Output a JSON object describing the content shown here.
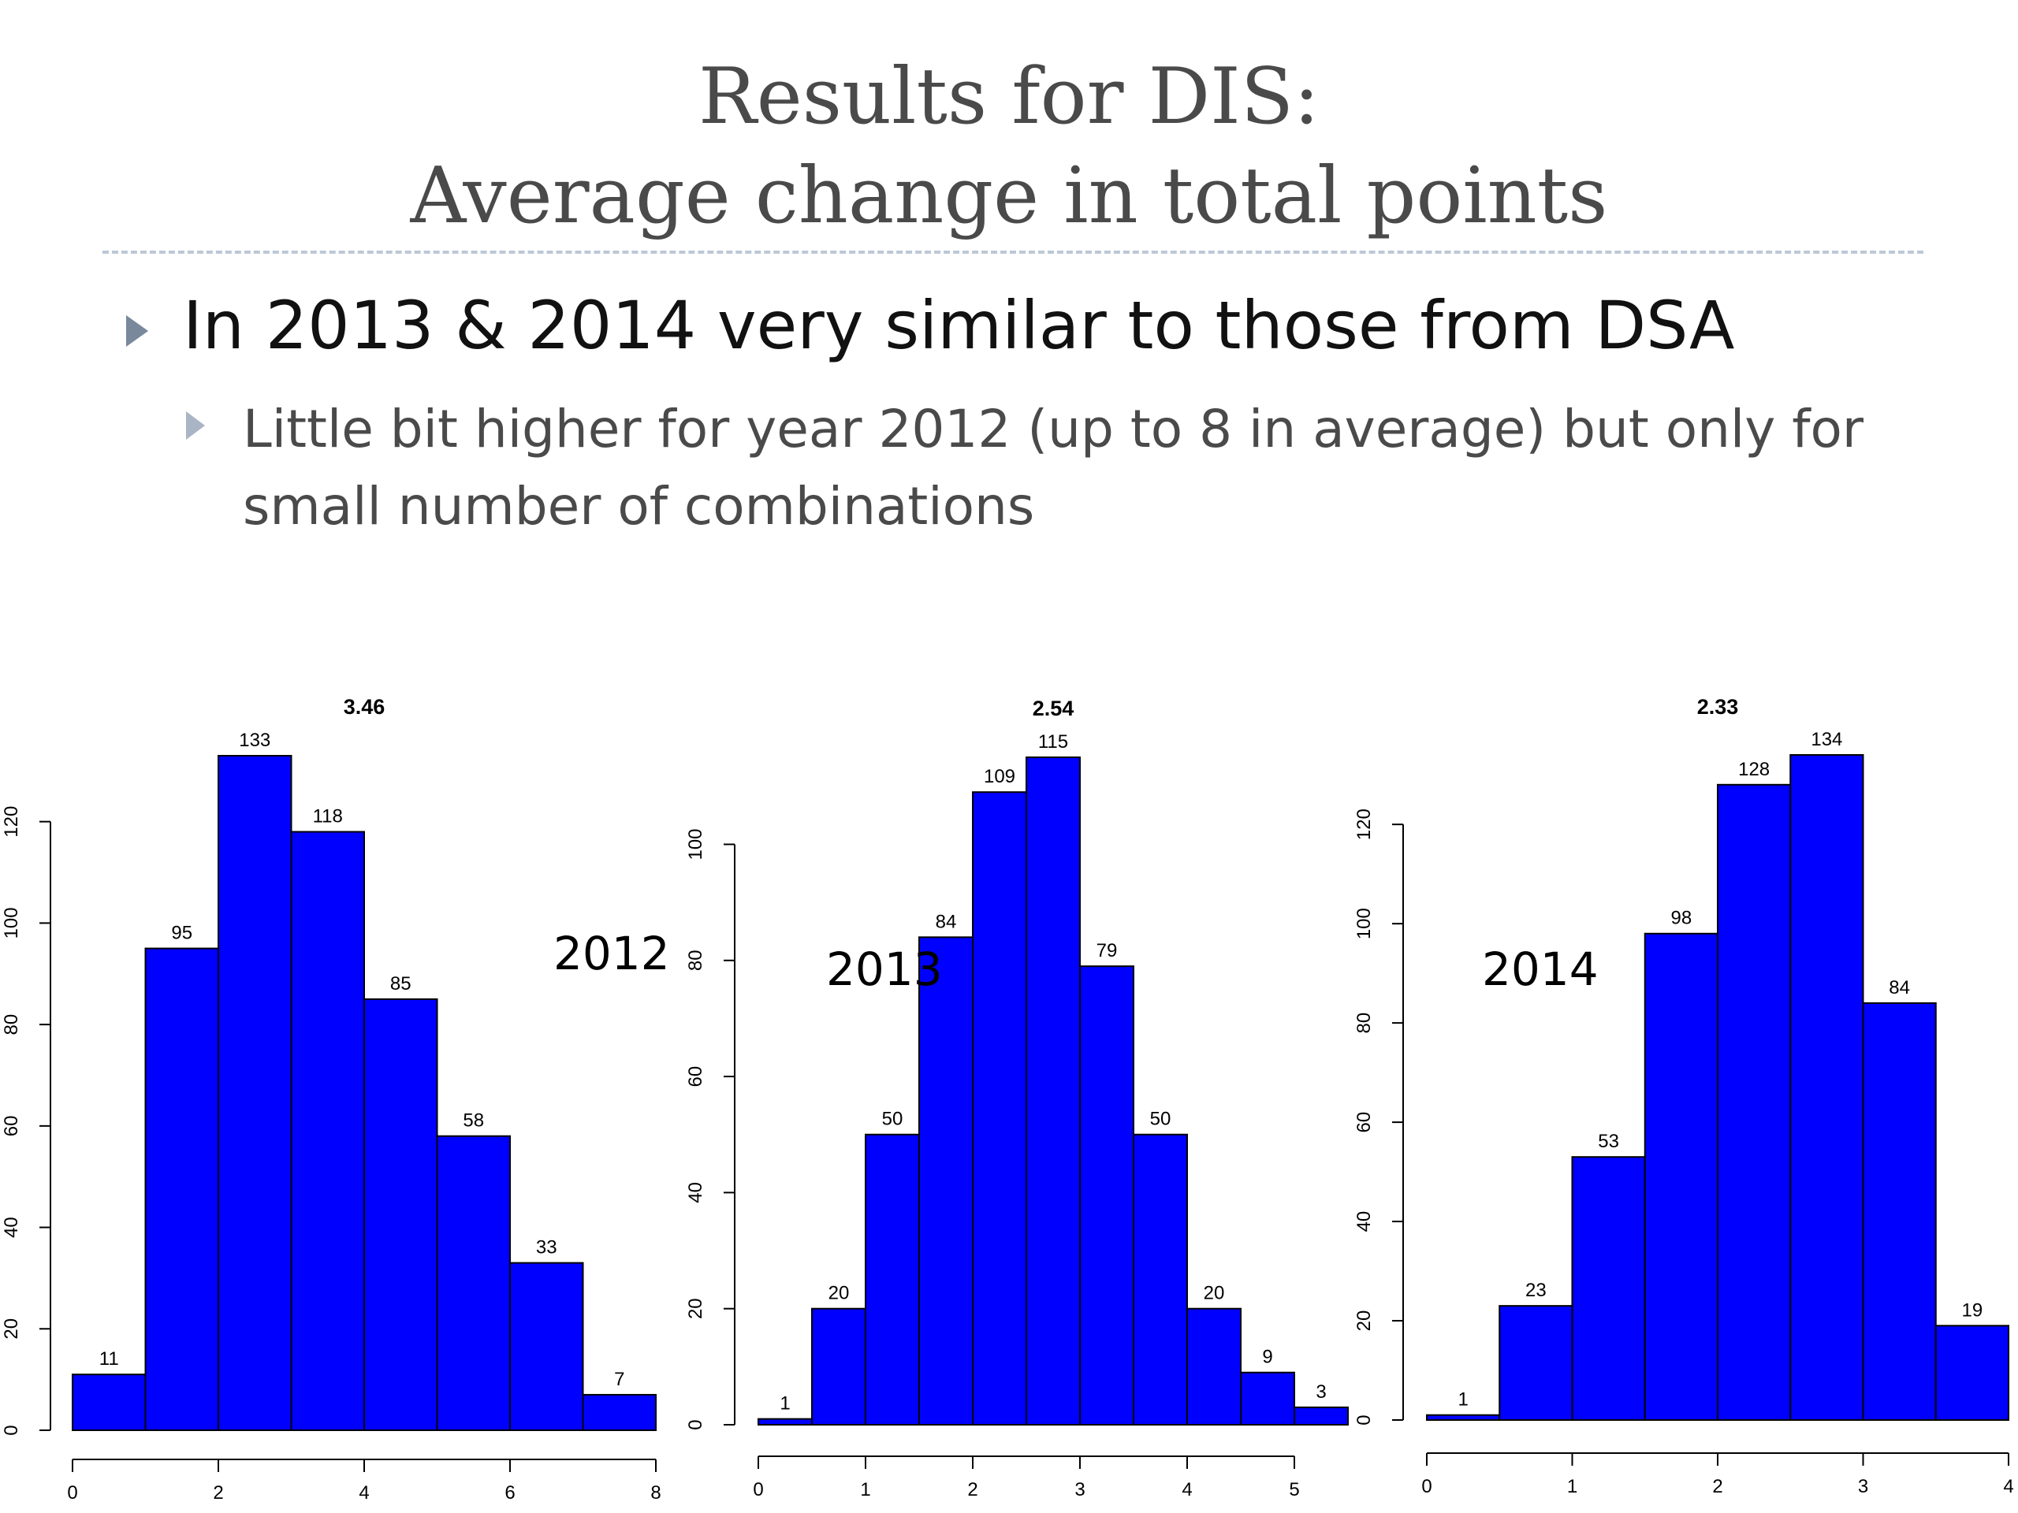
{
  "slide": {
    "title_line1": "Results for DIS:",
    "title_line2": "Average change in total points",
    "bullet1": "In 2013 & 2014 very similar to those from DSA",
    "bullet2": "Little bit higher for year 2012 (up to 8 in average) but only for small number of combinations"
  },
  "colors": {
    "bar_fill": "#0000ff",
    "bullet_marker": "#7a889c",
    "subbullet_marker": "#a9b5c4",
    "title_text": "#4a4a4a"
  },
  "chart_data": [
    {
      "type": "bar",
      "title": "3.46",
      "annotation": "2012",
      "bin_edges": [
        0,
        1,
        2,
        3,
        4,
        5,
        6,
        7,
        8
      ],
      "values": [
        11,
        95,
        133,
        118,
        85,
        58,
        33,
        7
      ],
      "xticks": [
        0,
        2,
        4,
        6,
        8
      ],
      "yticks": [
        0,
        20,
        40,
        60,
        80,
        100,
        120
      ],
      "xlim": [
        0,
        8
      ],
      "ylim": [
        0,
        133
      ]
    },
    {
      "type": "bar",
      "title": "2.54",
      "annotation": "2013",
      "bin_edges": [
        0,
        0.5,
        1,
        1.5,
        2,
        2.5,
        3,
        3.5,
        4,
        4.5,
        5,
        5.5
      ],
      "values": [
        1,
        20,
        50,
        84,
        109,
        115,
        79,
        50,
        20,
        9,
        3
      ],
      "xticks": [
        0,
        1,
        2,
        3,
        4,
        5
      ],
      "yticks": [
        0,
        20,
        40,
        60,
        80,
        100
      ],
      "xlim": [
        0,
        5.5
      ],
      "ylim": [
        0,
        115
      ]
    },
    {
      "type": "bar",
      "title": "2.33",
      "annotation": "2014",
      "bin_edges": [
        0,
        0.5,
        1,
        1.5,
        2,
        2.5,
        3,
        3.5,
        4
      ],
      "values": [
        1,
        23,
        53,
        98,
        128,
        134,
        84,
        19
      ],
      "xticks": [
        0,
        1,
        2,
        3,
        4
      ],
      "yticks": [
        0,
        20,
        40,
        60,
        80,
        100,
        120
      ],
      "xlim": [
        0,
        4
      ],
      "ylim": [
        0,
        134
      ]
    }
  ]
}
